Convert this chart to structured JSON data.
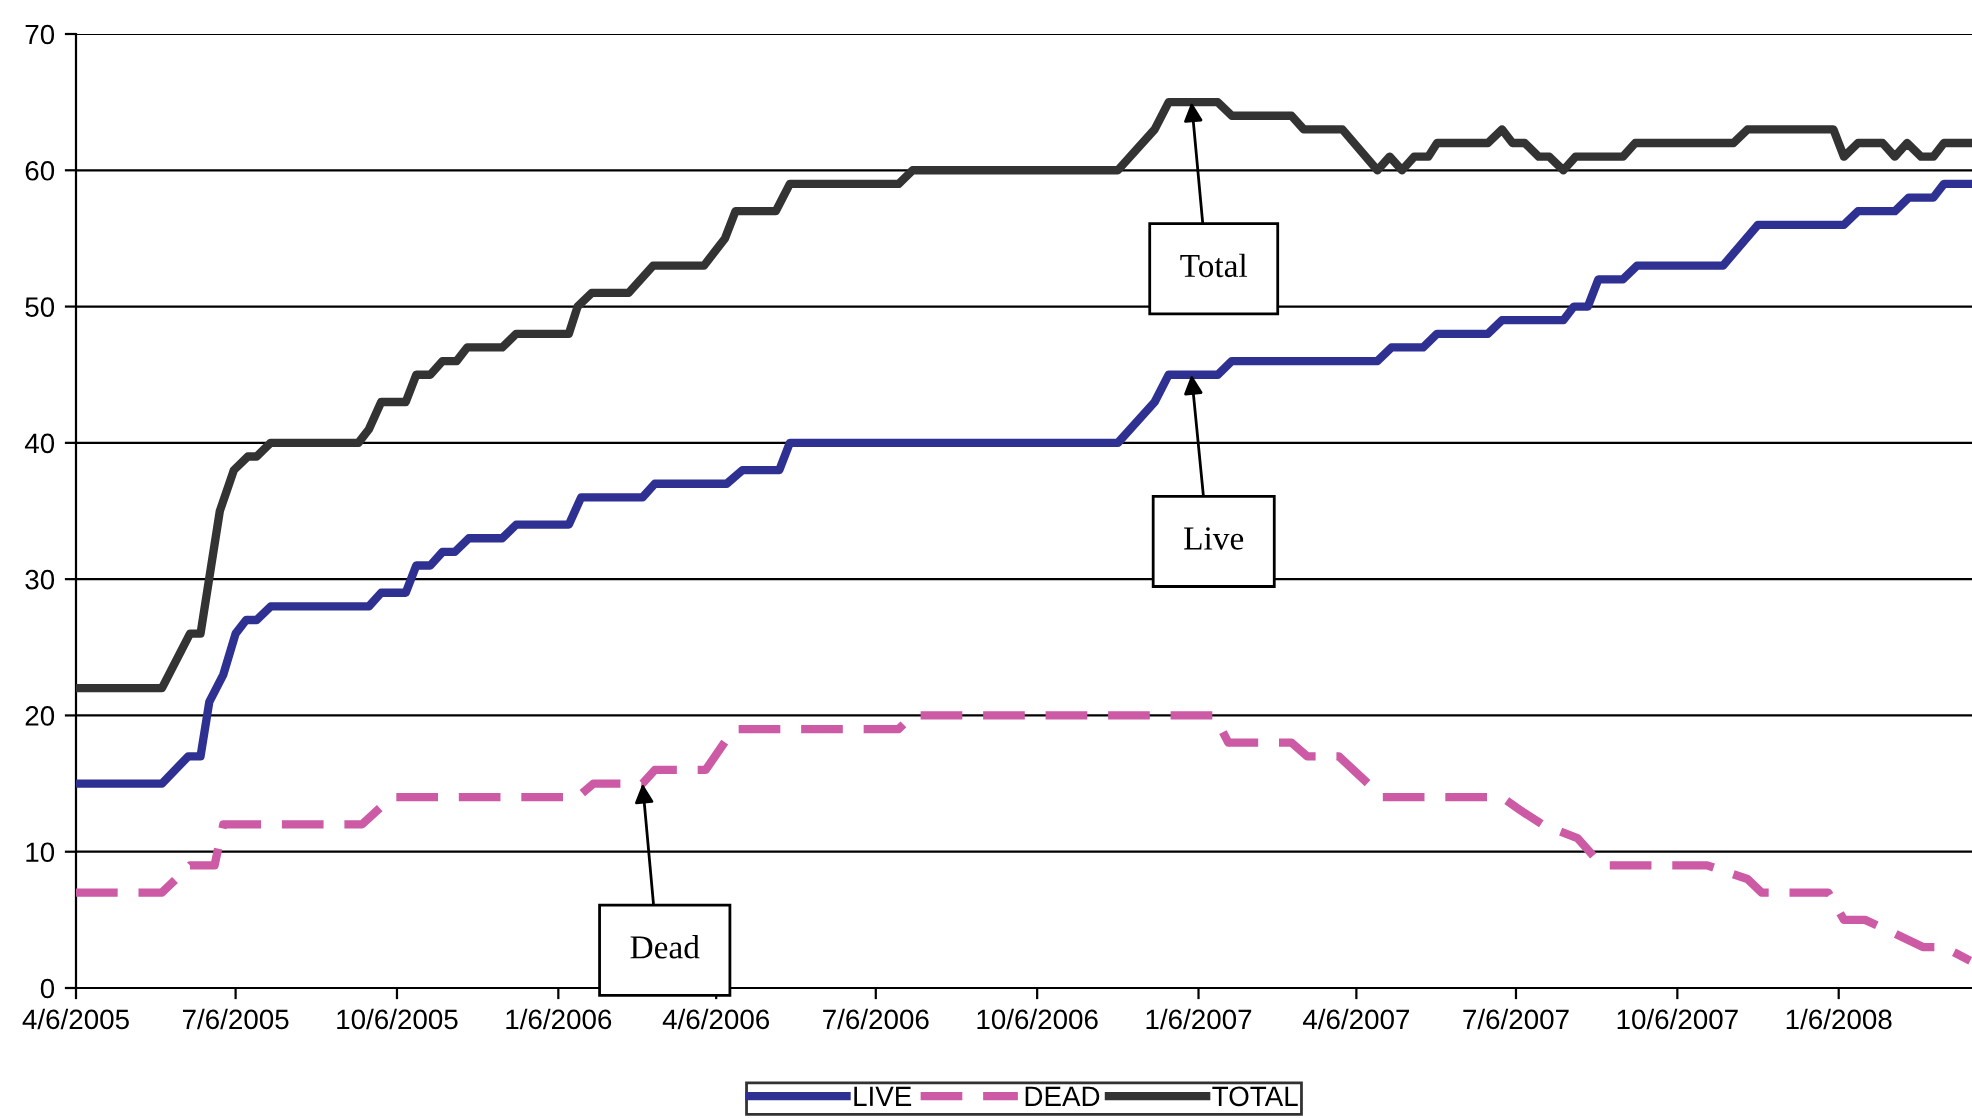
{
  "chart_data": {
    "type": "line",
    "xlim": [
      "2005-04-06",
      "2008-03-22"
    ],
    "xticks": [
      {
        "value": "2005-04-06",
        "label": "4/6/2005"
      },
      {
        "value": "2005-07-06",
        "label": "7/6/2005"
      },
      {
        "value": "2005-10-06",
        "label": "10/6/2005"
      },
      {
        "value": "2006-01-06",
        "label": "1/6/2006"
      },
      {
        "value": "2006-04-06",
        "label": "4/6/2006"
      },
      {
        "value": "2006-07-06",
        "label": "7/6/2006"
      },
      {
        "value": "2006-10-06",
        "label": "10/6/2006"
      },
      {
        "value": "2007-01-06",
        "label": "1/6/2007"
      },
      {
        "value": "2007-04-06",
        "label": "4/6/2007"
      },
      {
        "value": "2007-07-06",
        "label": "7/6/2007"
      },
      {
        "value": "2007-10-06",
        "label": "10/6/2007"
      },
      {
        "value": "2008-01-06",
        "label": "1/6/2008"
      }
    ],
    "ylim": [
      0,
      70
    ],
    "yticks": [
      0,
      10,
      20,
      30,
      40,
      50,
      60,
      70
    ],
    "grid": "y",
    "legend": "bottom",
    "marker": "none",
    "series": [
      {
        "name": "LIVE",
        "color": "#2e3192",
        "line_style": "solid",
        "x": [
          "2005-04-06",
          "2005-05-25",
          "2005-06-09",
          "2005-06-16",
          "2005-06-21",
          "2005-06-29",
          "2005-07-06",
          "2005-07-12",
          "2005-07-18",
          "2005-07-26",
          "2005-09-20",
          "2005-09-27",
          "2005-10-11",
          "2005-10-17",
          "2005-10-25",
          "2005-11-01",
          "2005-11-08",
          "2005-11-16",
          "2005-12-05",
          "2005-12-13",
          "2006-01-12",
          "2006-01-19",
          "2006-02-23",
          "2006-03-02",
          "2006-04-12",
          "2006-04-21",
          "2006-05-12",
          "2006-05-18",
          "2006-11-21",
          "2006-12-12",
          "2006-12-20",
          "2007-01-17",
          "2007-01-25",
          "2007-04-18",
          "2007-04-26",
          "2007-05-14",
          "2007-05-22",
          "2007-06-20",
          "2007-06-28",
          "2007-08-02",
          "2007-08-08",
          "2007-08-16",
          "2007-08-22",
          "2007-09-05",
          "2007-09-13",
          "2007-11-01",
          "2007-11-21",
          "2008-01-09",
          "2008-01-17",
          "2008-02-07",
          "2008-02-15",
          "2008-02-29",
          "2008-03-06",
          "2008-03-21"
        ],
        "values": [
          15,
          15,
          17,
          17,
          21,
          23,
          26,
          27,
          27,
          28,
          28,
          29,
          29,
          31,
          31,
          32,
          32,
          33,
          33,
          34,
          34,
          36,
          36,
          37,
          37,
          38,
          38,
          40,
          40,
          43,
          45,
          45,
          46,
          46,
          47,
          47,
          48,
          48,
          49,
          49,
          50,
          50,
          52,
          52,
          53,
          53,
          56,
          56,
          57,
          57,
          58,
          58,
          59,
          59
        ]
      },
      {
        "name": "DEAD",
        "color": "#cc5aa5",
        "line_style": "dashed",
        "x": [
          "2005-04-06",
          "2005-05-25",
          "2005-06-10",
          "2005-06-24",
          "2005-06-29",
          "2005-09-16",
          "2005-10-03",
          "2006-01-17",
          "2006-01-26",
          "2006-02-23",
          "2006-03-02",
          "2006-03-31",
          "2006-04-16",
          "2006-07-19",
          "2006-07-27",
          "2007-01-15",
          "2007-01-23",
          "2007-02-28",
          "2007-03-09",
          "2007-03-27",
          "2007-04-21",
          "2007-06-28",
          "2007-07-09",
          "2007-07-21",
          "2007-08-10",
          "2007-08-24",
          "2007-10-23",
          "2007-11-15",
          "2007-11-23",
          "2007-12-31",
          "2008-01-09",
          "2008-01-21",
          "2008-02-07",
          "2008-02-23",
          "2008-03-06",
          "2008-03-21"
        ],
        "values": [
          7,
          7,
          9,
          9,
          12,
          12,
          14,
          14,
          15,
          15,
          16,
          16,
          19,
          19,
          20,
          20,
          18,
          18,
          17,
          17,
          14,
          14,
          13,
          12,
          11,
          9,
          9,
          8,
          7,
          7,
          5,
          5,
          4,
          3,
          3,
          2
        ]
      },
      {
        "name": "TOTAL",
        "color": "#333333",
        "line_style": "solid",
        "x": [
          "2005-04-06",
          "2005-05-25",
          "2005-06-10",
          "2005-06-16",
          "2005-06-27",
          "2005-07-05",
          "2005-07-13",
          "2005-07-18",
          "2005-07-26",
          "2005-09-14",
          "2005-09-20",
          "2005-09-27",
          "2005-10-11",
          "2005-10-17",
          "2005-10-25",
          "2005-11-01",
          "2005-11-09",
          "2005-11-15",
          "2005-12-05",
          "2005-12-13",
          "2006-01-12",
          "2006-01-17",
          "2006-01-25",
          "2006-02-15",
          "2006-03-01",
          "2006-03-30",
          "2006-04-11",
          "2006-04-17",
          "2006-05-10",
          "2006-05-18",
          "2006-07-19",
          "2006-07-27",
          "2006-11-21",
          "2006-12-12",
          "2006-12-20",
          "2007-01-17",
          "2007-01-25",
          "2007-02-28",
          "2007-03-07",
          "2007-03-29",
          "2007-04-18",
          "2007-04-25",
          "2007-05-02",
          "2007-05-09",
          "2007-05-17",
          "2007-05-22",
          "2007-06-20",
          "2007-06-28",
          "2007-07-04",
          "2007-07-11",
          "2007-07-19",
          "2007-07-25",
          "2007-08-02",
          "2007-08-09",
          "2007-09-05",
          "2007-09-12",
          "2007-11-07",
          "2007-11-15",
          "2008-01-03",
          "2008-01-09",
          "2008-01-17",
          "2008-01-31",
          "2008-02-07",
          "2008-02-14",
          "2008-02-22",
          "2008-02-29",
          "2008-03-06",
          "2008-03-21"
        ],
        "values": [
          22,
          22,
          26,
          26,
          35,
          38,
          39,
          39,
          40,
          40,
          41,
          43,
          43,
          45,
          45,
          46,
          46,
          47,
          47,
          48,
          48,
          50,
          51,
          51,
          53,
          53,
          55,
          57,
          57,
          59,
          59,
          60,
          60,
          63,
          65,
          65,
          64,
          64,
          63,
          63,
          60,
          61,
          60,
          61,
          61,
          62,
          62,
          63,
          62,
          62,
          61,
          61,
          60,
          61,
          61,
          62,
          62,
          63,
          63,
          61,
          62,
          62,
          61,
          62,
          61,
          61,
          62,
          62
        ]
      }
    ],
    "annotations": [
      {
        "text": "Total",
        "x": "2007-01-02",
        "y": 65
      },
      {
        "text": "Live",
        "x": "2007-01-02",
        "y": 45
      },
      {
        "text": "Dead",
        "x": "2006-02-23",
        "y": 15
      }
    ]
  }
}
